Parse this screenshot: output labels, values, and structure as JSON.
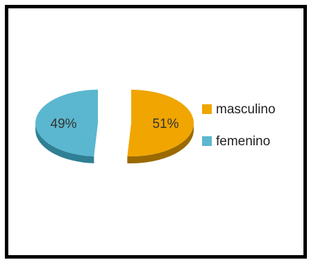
{
  "chart_data": {
    "type": "pie",
    "title": "",
    "exploded": true,
    "three_d": true,
    "legend_position": "right",
    "slices": [
      {
        "label": "masculino",
        "value": 51,
        "display": "51%",
        "color": "#F0A500",
        "side_color": "#9A6A00"
      },
      {
        "label": "femenino",
        "value": 49,
        "display": "49%",
        "color": "#5BB7CF",
        "side_color": "#2F7F95"
      }
    ]
  }
}
